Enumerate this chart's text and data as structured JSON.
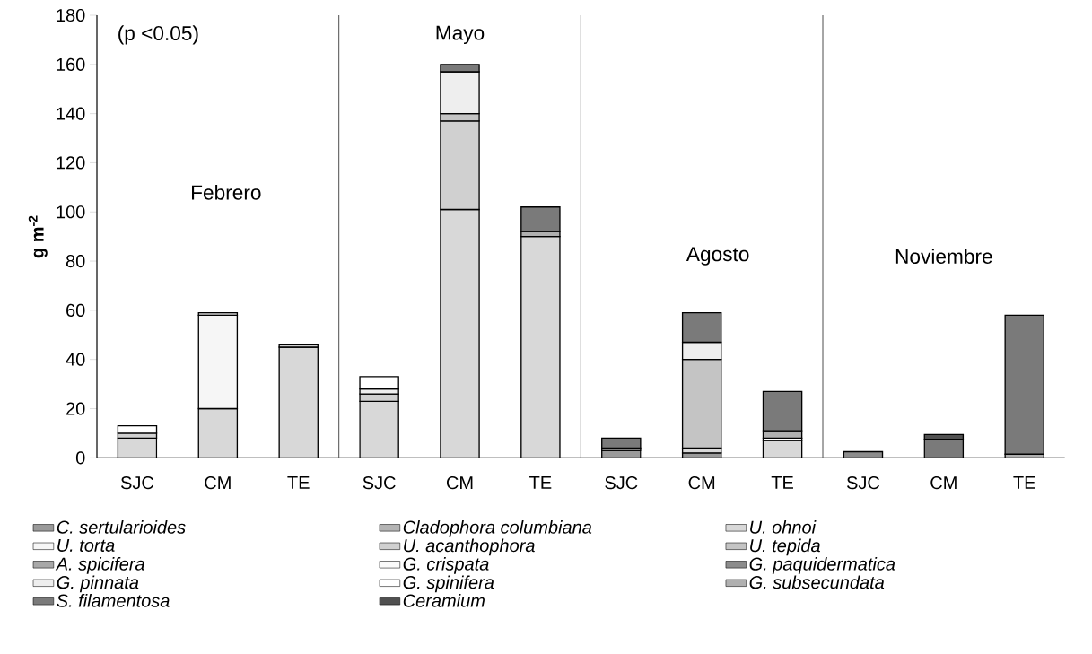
{
  "chart_data": {
    "type": "bar",
    "stacked": true,
    "ylabel": "g m$^{-2}$",
    "categories": [
      "SJC",
      "CM",
      "TE",
      "SJC",
      "CM",
      "TE",
      "SJC",
      "CM",
      "TE",
      "SJC",
      "CM",
      "TE"
    ],
    "annotations": [
      "(p <0.05)",
      "Febrero",
      "Mayo",
      "Agosto",
      "Noviembre"
    ],
    "ylim": [
      0,
      180
    ],
    "yticks": [
      0,
      20,
      40,
      60,
      80,
      100,
      120,
      140,
      160,
      180
    ],
    "grid": false,
    "legend": "bottom",
    "series": [
      {
        "name": "C. sertularioides",
        "color": "#9a9a9a",
        "values": [
          null,
          null,
          null,
          null,
          null,
          null,
          3,
          2,
          null,
          null,
          null,
          null
        ]
      },
      {
        "name": "Cladophora columbiana",
        "color": "#b4b4b4",
        "values": [
          null,
          null,
          null,
          null,
          null,
          null,
          null,
          null,
          null,
          null,
          null,
          null
        ]
      },
      {
        "name": "U. ohnoi",
        "color": "#d8d8d8",
        "values": [
          8,
          20,
          45,
          23,
          101,
          90,
          null,
          2,
          7,
          null,
          null,
          null
        ]
      },
      {
        "name": "U. torta",
        "color": "#f6f6f6",
        "values": [
          null,
          38,
          null,
          null,
          null,
          null,
          null,
          null,
          null,
          null,
          null,
          null
        ]
      },
      {
        "name": "U. acanthophora",
        "color": "#d0d0d0",
        "values": [
          2,
          1,
          1,
          3,
          36,
          null,
          null,
          null,
          null,
          null,
          null,
          null
        ]
      },
      {
        "name": "U. tepida",
        "color": "#c4c4c4",
        "values": [
          null,
          null,
          null,
          null,
          3,
          null,
          null,
          36,
          null,
          null,
          null,
          null
        ]
      },
      {
        "name": "A. spicifera",
        "color": "#a8a8a8",
        "values": [
          null,
          null,
          null,
          null,
          null,
          null,
          null,
          null,
          null,
          null,
          null,
          null
        ]
      },
      {
        "name": "G. crispata",
        "color": "#fafafa",
        "values": [
          null,
          null,
          null,
          null,
          null,
          null,
          null,
          null,
          null,
          null,
          null,
          null
        ]
      },
      {
        "name": "G. paquidermatica",
        "color": "#8c8c8c",
        "values": [
          null,
          null,
          null,
          null,
          null,
          null,
          null,
          null,
          null,
          2.5,
          null,
          null
        ]
      },
      {
        "name": "G. pinnata",
        "color": "#eeeeee",
        "values": [
          null,
          null,
          null,
          2,
          17,
          null,
          null,
          7,
          null,
          null,
          null,
          null
        ]
      },
      {
        "name": "G. spinifera",
        "color": "#ffffff",
        "values": [
          3,
          null,
          null,
          5,
          null,
          null,
          1,
          null,
          1,
          null,
          null,
          null
        ]
      },
      {
        "name": "G. subsecundata",
        "color": "#b0b0b0",
        "values": [
          null,
          null,
          null,
          null,
          null,
          2,
          null,
          null,
          3,
          null,
          null,
          1.5
        ]
      },
      {
        "name": "S. filamentosa",
        "color": "#7a7a7a",
        "values": [
          null,
          null,
          null,
          null,
          3,
          10,
          4,
          12,
          16,
          null,
          7.5,
          56.5
        ]
      },
      {
        "name": "Ceramium",
        "color": "#505050",
        "values": [
          null,
          null,
          null,
          null,
          null,
          null,
          null,
          null,
          null,
          null,
          2,
          null
        ]
      }
    ]
  }
}
